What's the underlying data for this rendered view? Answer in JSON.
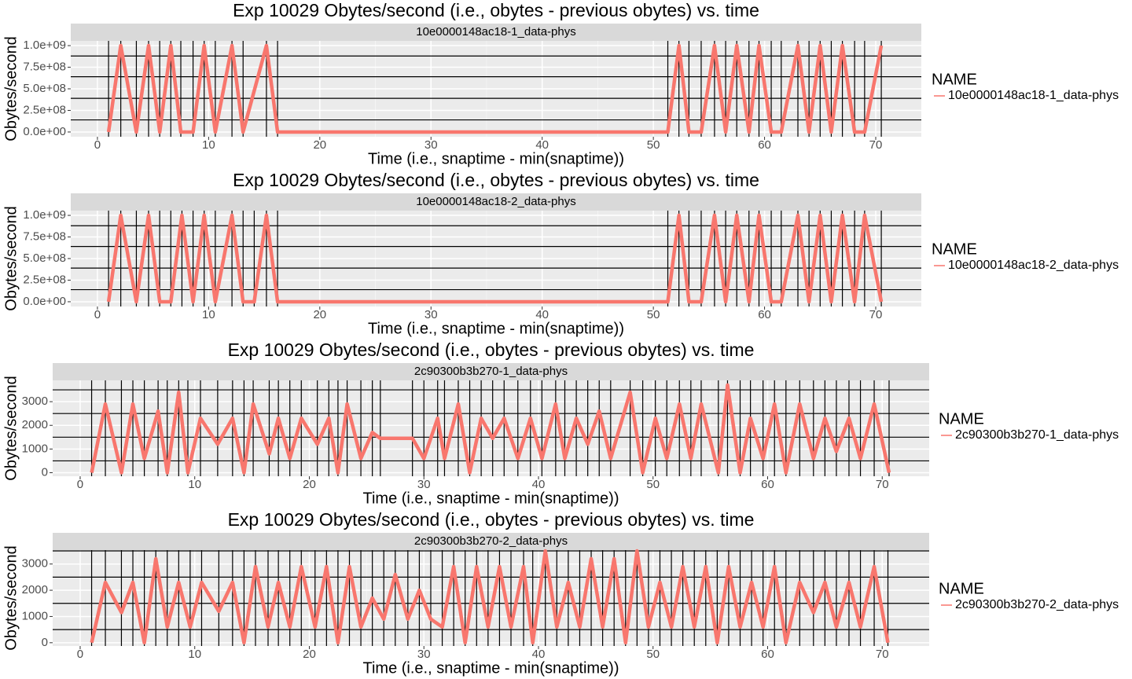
{
  "chart_data": [
    {
      "type": "line",
      "title": "Exp 10029 Obytes/second (i.e., obytes - previous obytes) vs. time",
      "strip": "10e0000148ac18-1_data-phys",
      "x_label": "Time (i.e., snaptime - min(snaptime))",
      "y_label": "Obytes/second",
      "legend_title": "NAME",
      "series": [
        {
          "name": "10e0000148ac18-1_data-phys",
          "color": "#f8766d",
          "x": [
            1,
            2.1,
            3.5,
            4.6,
            5.6,
            6.6,
            7.5,
            8.6,
            9.6,
            10.6,
            12.1,
            13.1,
            15.2,
            16.2,
            51.3,
            52.3,
            53.2,
            54.3,
            55.5,
            56.5,
            57.5,
            58.6,
            59.5,
            60.6,
            61.5,
            63.0,
            64.0,
            65.0,
            66.0,
            67.0,
            68.1,
            69.0,
            70.5
          ],
          "values": [
            0,
            1000000000,
            0,
            1000000000,
            0,
            1000000000,
            0,
            0,
            1000000000,
            0,
            1000000000,
            0,
            1000000000,
            0,
            0,
            1000000000,
            0,
            0,
            1000000000,
            0,
            1000000000,
            0,
            1000000000,
            0,
            0,
            1000000000,
            0,
            1000000000,
            0,
            1000000000,
            0,
            0,
            1000000000
          ]
        }
      ],
      "xlim": [
        -2.4,
        74.1
      ],
      "ylim": [
        -55000000,
        1055000000
      ],
      "xticks": [
        0,
        10,
        20,
        30,
        40,
        50,
        60,
        70
      ],
      "yticks": [
        {
          "value": 0,
          "label": "0.0e+00"
        },
        {
          "value": 250000000,
          "label": "2.5e+08"
        },
        {
          "value": 500000000,
          "label": "5.0e+08"
        },
        {
          "value": 750000000,
          "label": "7.5e+08"
        },
        {
          "value": 1000000000,
          "label": "1.0e+09"
        }
      ],
      "hlines": [
        140000000,
        390000000,
        640000000,
        880000000
      ],
      "vlines_at_x": true,
      "grid": true
    },
    {
      "type": "line",
      "title": "Exp 10029 Obytes/second (i.e., obytes - previous obytes) vs. time",
      "strip": "10e0000148ac18-2_data-phys",
      "x_label": "Time (i.e., snaptime - min(snaptime))",
      "y_label": "Obytes/second",
      "legend_title": "NAME",
      "series": [
        {
          "name": "10e0000148ac18-2_data-phys",
          "color": "#f8766d",
          "x": [
            1,
            2.1,
            3.5,
            4.6,
            5.6,
            6.6,
            7.6,
            8.6,
            9.6,
            10.6,
            12.1,
            13.1,
            14.1,
            15.2,
            16.2,
            51.3,
            52.3,
            53.2,
            54.3,
            55.5,
            56.5,
            57.5,
            58.6,
            59.5,
            60.6,
            61.5,
            63.0,
            64.0,
            65.0,
            66.0,
            67.0,
            68.1,
            69.0,
            70.5
          ],
          "values": [
            0,
            1000000000,
            0,
            1000000000,
            0,
            0,
            1000000000,
            0,
            1000000000,
            0,
            1000000000,
            0,
            0,
            1000000000,
            0,
            0,
            1000000000,
            0,
            0,
            1000000000,
            0,
            1000000000,
            0,
            1000000000,
            0,
            0,
            1000000000,
            0,
            1000000000,
            0,
            1000000000,
            0,
            1000000000,
            0
          ]
        }
      ],
      "xlim": [
        -2.4,
        74.1
      ],
      "ylim": [
        -55000000,
        1055000000
      ],
      "xticks": [
        0,
        10,
        20,
        30,
        40,
        50,
        60,
        70
      ],
      "yticks": [
        {
          "value": 0,
          "label": "0.0e+00"
        },
        {
          "value": 250000000,
          "label": "2.5e+08"
        },
        {
          "value": 500000000,
          "label": "5.0e+08"
        },
        {
          "value": 750000000,
          "label": "7.5e+08"
        },
        {
          "value": 1000000000,
          "label": "1.0e+09"
        }
      ],
      "hlines": [
        140000000,
        390000000,
        640000000,
        880000000
      ],
      "vlines_at_x": true,
      "grid": true
    },
    {
      "type": "line",
      "title": "Exp 10029 Obytes/second (i.e., obytes - previous obytes) vs. time",
      "strip": "2c90300b3b270-1_data-phys",
      "x_label": "Time (i.e., snaptime - min(snaptime))",
      "y_label": "Obytes/second",
      "legend_title": "NAME",
      "series": [
        {
          "name": "2c90300b3b270-1_data-phys",
          "color": "#f8766d",
          "x": [
            1,
            2.2,
            3.6,
            4.6,
            5.6,
            6.8,
            7.6,
            8.6,
            9.4,
            10.5,
            12,
            13.3,
            14.3,
            15.1,
            16.5,
            17.3,
            18.3,
            19.3,
            20.7,
            21.7,
            22.5,
            23.3,
            24.5,
            25.5,
            26.2,
            29,
            30,
            31.2,
            31.8,
            33,
            34,
            35,
            36,
            37,
            38.2,
            39.3,
            40.3,
            41.5,
            42.3,
            43.3,
            44.3,
            45.3,
            46.3,
            48,
            49.1,
            50.2,
            51.2,
            52.3,
            53.3,
            54.2,
            55.7,
            56.5,
            57.6,
            58.5,
            59.6,
            60.6,
            61.6,
            62.8,
            64,
            65,
            66,
            67.1,
            68.1,
            69.3,
            70.6
          ],
          "values": [
            0,
            2900,
            0,
            2900,
            600,
            2600,
            0,
            3400,
            0,
            2300,
            1200,
            2300,
            0,
            2900,
            800,
            2300,
            600,
            2300,
            1200,
            2300,
            0,
            2900,
            600,
            1700,
            1450,
            1450,
            600,
            2300,
            600,
            2900,
            0,
            2300,
            1450,
            2300,
            600,
            2300,
            600,
            2900,
            600,
            2300,
            1200,
            2600,
            600,
            3400,
            0,
            2300,
            600,
            2900,
            600,
            2900,
            0,
            3700,
            0,
            2300,
            600,
            2900,
            0,
            2900,
            600,
            2300,
            900,
            2300,
            600,
            2900,
            0
          ]
        }
      ],
      "xlim": [
        -2.4,
        74.1
      ],
      "ylim": [
        -150,
        3900
      ],
      "xticks": [
        0,
        10,
        20,
        30,
        40,
        50,
        60,
        70
      ],
      "yticks": [
        0,
        1000,
        2000,
        3000
      ],
      "hlines": [
        500,
        1500,
        2500,
        3500
      ],
      "vlines_at_x": true,
      "grid": true
    },
    {
      "type": "line",
      "title": "Exp 10029 Obytes/second (i.e., obytes - previous obytes) vs. time",
      "strip": "2c90300b3b270-2_data-phys",
      "x_label": "Time (i.e., snaptime - min(snaptime))",
      "y_label": "Obytes/second",
      "legend_title": "NAME",
      "series": [
        {
          "name": "2c90300b3b270-2_data-phys",
          "color": "#f8766d",
          "x": [
            1,
            2.2,
            3.6,
            4.6,
            5.6,
            6.6,
            7.6,
            8.6,
            9.6,
            10.6,
            12.1,
            13.3,
            14.3,
            15.3,
            16.4,
            17.3,
            18.3,
            19.3,
            20.5,
            21.5,
            22.5,
            23.5,
            24.5,
            25.5,
            26.5,
            27.5,
            28.6,
            29.6,
            30.6,
            31.6,
            32.6,
            33.6,
            34.6,
            35.6,
            36.6,
            37.6,
            38.7,
            39.5,
            40.6,
            41.6,
            42.6,
            43.6,
            44.6,
            45.6,
            46.6,
            47.6,
            48.6,
            49.6,
            50.6,
            51.6,
            52.6,
            53.6,
            54.6,
            55.6,
            56.6,
            57.6,
            58.6,
            59.6,
            60.6,
            61.6,
            62.8,
            64,
            65,
            66,
            67.1,
            68.1,
            69.3,
            70.5
          ],
          "values": [
            0,
            2300,
            1150,
            2300,
            0,
            3200,
            600,
            2300,
            600,
            2300,
            1200,
            2300,
            0,
            2900,
            600,
            2300,
            600,
            2900,
            600,
            2900,
            0,
            2900,
            600,
            1700,
            900,
            2600,
            900,
            2000,
            900,
            600,
            2900,
            0,
            2900,
            600,
            2900,
            600,
            2900,
            0,
            3500,
            600,
            2300,
            600,
            3200,
            600,
            3200,
            0,
            3500,
            600,
            2300,
            600,
            2900,
            600,
            2900,
            0,
            2900,
            600,
            2300,
            600,
            2900,
            0,
            2300,
            1150,
            2300,
            600,
            2300,
            600,
            2900,
            0
          ]
        }
      ],
      "xlim": [
        -2.4,
        74.1
      ],
      "ylim": [
        -125,
        3530
      ],
      "xticks": [
        0,
        10,
        20,
        30,
        40,
        50,
        60,
        70
      ],
      "yticks": [
        0,
        1000,
        2000,
        3000
      ],
      "hlines": [
        500,
        1500,
        2500,
        3500
      ],
      "vlines_at_x": true,
      "grid": true
    }
  ]
}
